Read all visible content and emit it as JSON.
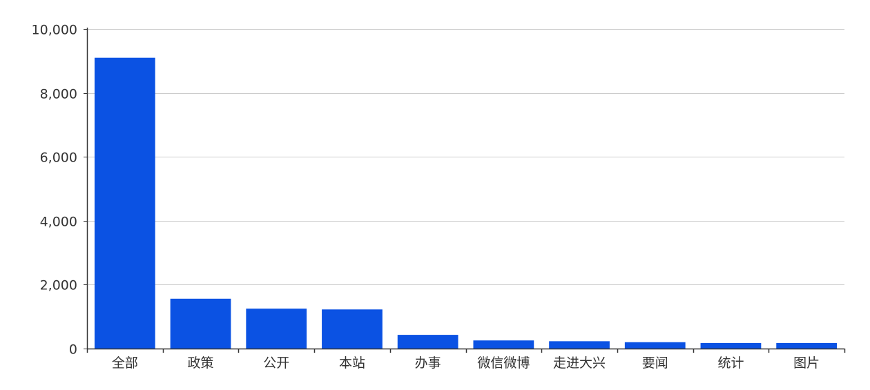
{
  "chart_data": {
    "type": "bar",
    "categories": [
      "全部",
      "政策",
      "公开",
      "本站",
      "办事",
      "微信微博",
      "走进大兴",
      "要闻",
      "统计",
      "图片"
    ],
    "values": [
      9100,
      1560,
      1250,
      1225,
      430,
      255,
      230,
      200,
      175,
      175
    ],
    "ylim": [
      0,
      10000
    ],
    "yticks": [
      "0",
      "2,000",
      "4,000",
      "6,000",
      "8,000",
      "10,000"
    ],
    "ytick_values": [
      0,
      2000,
      4000,
      6000,
      8000,
      10000
    ],
    "grid": true,
    "bar_color": "#0b52e3",
    "title": "",
    "xlabel": "",
    "ylabel": ""
  }
}
